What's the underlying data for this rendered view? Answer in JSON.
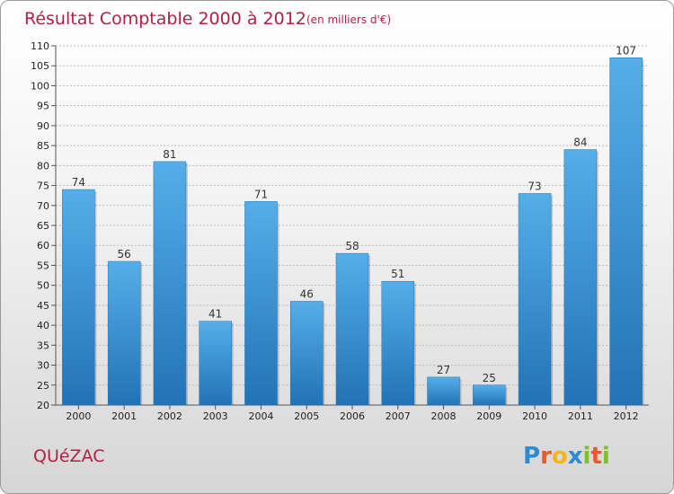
{
  "chart_data": {
    "type": "bar",
    "title": "Résultat Comptable 2000 à 2012",
    "subtitle": "(en milliers d'€)",
    "categories": [
      "2000",
      "2001",
      "2002",
      "2003",
      "2004",
      "2005",
      "2006",
      "2007",
      "2008",
      "2009",
      "2010",
      "2011",
      "2012"
    ],
    "values": [
      74,
      56,
      81,
      41,
      71,
      46,
      58,
      51,
      27,
      25,
      73,
      84,
      107
    ],
    "ylim": [
      20,
      110
    ],
    "yticks": [
      20,
      25,
      30,
      35,
      40,
      45,
      50,
      55,
      60,
      65,
      70,
      75,
      80,
      85,
      90,
      95,
      100,
      105,
      110
    ],
    "xlabel": "",
    "ylabel": "",
    "grid": true,
    "bar_color": "#3f97dc",
    "bar_color_dark": "#2273b5"
  },
  "footer": {
    "town": "QUéZAC",
    "brand_letters": [
      "P",
      "r",
      "o",
      "x",
      "i",
      "t",
      "i"
    ],
    "brand_colors": [
      "#2e8bd0",
      "#e85a2a",
      "#f2b51a",
      "#2e8bd0",
      "#7fbf2a",
      "#e85a2a",
      "#7fbf2a"
    ]
  },
  "colors": {
    "title": "#b42044",
    "grid": "#bbbbbb"
  }
}
